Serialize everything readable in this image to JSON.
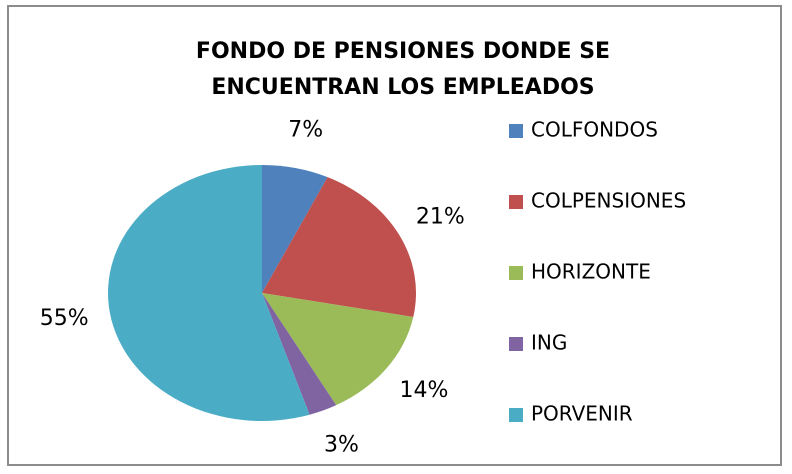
{
  "chart_data": {
    "type": "pie",
    "title": [
      "FONDO DE PENSIONES DONDE SE",
      "ENCUENTRAN LOS EMPLEADOS"
    ],
    "categories": [
      "COLFONDOS",
      "COLPENSIONES",
      "HORIZONTE",
      "ING",
      "PORVENIR"
    ],
    "values": [
      7,
      21,
      14,
      3,
      55
    ],
    "value_labels": [
      "7%",
      "21%",
      "14%",
      "3%",
      "55%"
    ],
    "colors": [
      "#4f81bd",
      "#c0504d",
      "#9bbb59",
      "#8064a2",
      "#4bacc6"
    ],
    "legend": "right"
  }
}
